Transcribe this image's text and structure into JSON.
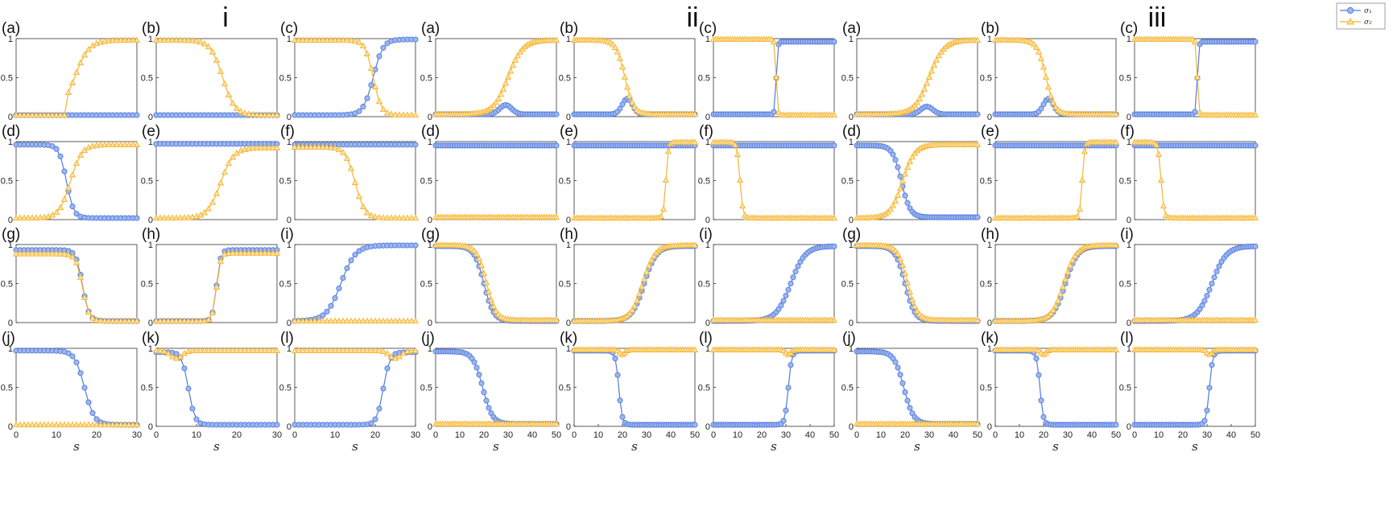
{
  "figure": {
    "group_labels": [
      "i",
      "ii",
      "iii"
    ],
    "legend": {
      "entries": [
        "σ₁",
        "σ₂"
      ],
      "placement": "top-right",
      "colors": [
        "#4f7be0",
        "#f5b431"
      ]
    },
    "colors": {
      "sigma1_line": "#4f7be0",
      "sigma1_fill": "#9fb6ee",
      "sigma2_line": "#f5b431",
      "sigma2_fill": "#fde3a3"
    }
  },
  "chart_data": [
    {
      "group": "i",
      "label": "(a)",
      "xlabel": "",
      "xticks": [],
      "xlim": [
        0,
        30
      ],
      "ylim": [
        0,
        1
      ],
      "yticks": [
        "0",
        "0.5",
        "1"
      ],
      "series": [
        {
          "type": "const",
          "v": 0.02
        },
        {
          "type": "sig",
          "y0": 0.02,
          "y1": 0.98,
          "c": 14.5,
          "w": 1.8,
          "xmin": 12.5
        }
      ]
    },
    {
      "group": "i",
      "label": "(b)",
      "xlabel": "",
      "xticks": [],
      "xlim": [
        0,
        30
      ],
      "ylim": [
        0,
        1
      ],
      "yticks": [
        "0",
        "0.5",
        "1"
      ],
      "series": [
        {
          "type": "const",
          "v": 0.02
        },
        {
          "type": "sig",
          "y0": 0.98,
          "y1": 0.02,
          "c": 16.5,
          "w": 1.5
        }
      ]
    },
    {
      "group": "i",
      "label": "(c)",
      "xlabel": "",
      "xticks": [],
      "xlim": [
        0,
        30
      ],
      "ylim": [
        0,
        1
      ],
      "yticks": [
        "0",
        "0.5",
        "1"
      ],
      "series": [
        {
          "type": "sig",
          "y0": 0.02,
          "y1": 0.99,
          "c": 19.5,
          "w": 1.2
        },
        {
          "type": "sig",
          "y0": 0.98,
          "y1": 0.02,
          "c": 19.5,
          "w": 1.0
        }
      ]
    },
    {
      "group": "ii",
      "label": "(a)",
      "xlabel": "",
      "xticks": [],
      "xlim": [
        0,
        50
      ],
      "ylim": [
        0,
        1
      ],
      "yticks": [
        "0",
        "0.5",
        "1"
      ],
      "series": [
        {
          "type": "bump",
          "base": 0.03,
          "amp": 0.12,
          "c": 29,
          "w": 3.5
        },
        {
          "type": "sig",
          "y0": 0.03,
          "y1": 0.98,
          "c": 30,
          "w": 3
        }
      ]
    },
    {
      "group": "ii",
      "label": "(b)",
      "xlabel": "",
      "xticks": [],
      "xlim": [
        0,
        50
      ],
      "ylim": [
        0,
        1
      ],
      "yticks": [
        "0",
        "0.5",
        "1"
      ],
      "series": [
        {
          "type": "bump",
          "base": 0.03,
          "amp": 0.2,
          "c": 22,
          "w": 3
        },
        {
          "type": "sig",
          "y0": 0.98,
          "y1": 0.03,
          "c": 21,
          "w": 1.8
        }
      ]
    },
    {
      "group": "ii",
      "label": "(c)",
      "xlabel": "",
      "xticks": [],
      "xlim": [
        0,
        50
      ],
      "ylim": [
        0,
        1
      ],
      "yticks": [
        "0",
        "0.5",
        "1"
      ],
      "series": [
        {
          "type": "sig",
          "y0": 0.03,
          "y1": 0.96,
          "c": 26,
          "w": 0.3
        },
        {
          "type": "sig",
          "y0": 0.99,
          "y1": 0.02,
          "c": 26,
          "w": 0.3
        }
      ]
    },
    {
      "group": "iii",
      "label": "(a)",
      "xlabel": "",
      "xticks": [],
      "xlim": [
        0,
        50
      ],
      "ylim": [
        0,
        1
      ],
      "yticks": [
        "0",
        "0.5",
        "1"
      ],
      "series": [
        {
          "type": "bump",
          "base": 0.03,
          "amp": 0.1,
          "c": 29,
          "w": 3.5
        },
        {
          "type": "sig",
          "y0": 0.03,
          "y1": 0.98,
          "c": 30,
          "w": 3
        }
      ]
    },
    {
      "group": "iii",
      "label": "(b)",
      "xlabel": "",
      "xticks": [],
      "xlim": [
        0,
        50
      ],
      "ylim": [
        0,
        1
      ],
      "yticks": [
        "0",
        "0.5",
        "1"
      ],
      "series": [
        {
          "type": "bump",
          "base": 0.03,
          "amp": 0.2,
          "c": 22,
          "w": 3
        },
        {
          "type": "sig",
          "y0": 0.98,
          "y1": 0.03,
          "c": 21,
          "w": 1.8
        }
      ]
    },
    {
      "group": "iii",
      "label": "(c)",
      "xlabel": "",
      "xticks": [],
      "xlim": [
        0,
        50
      ],
      "ylim": [
        0,
        1
      ],
      "yticks": [
        "0",
        "0.5",
        "1"
      ],
      "series": [
        {
          "type": "sig",
          "y0": 0.03,
          "y1": 0.96,
          "c": 26,
          "w": 0.3
        },
        {
          "type": "sig",
          "y0": 0.99,
          "y1": 0.02,
          "c": 26,
          "w": 0.3
        }
      ]
    },
    {
      "group": "i",
      "label": "(d)",
      "xlabel": "",
      "xticks": [],
      "xlim": [
        0,
        30
      ],
      "ylim": [
        0,
        1
      ],
      "yticks": [
        "0",
        "0.5",
        "1"
      ],
      "series": [
        {
          "type": "sig",
          "y0": 0.96,
          "y1": 0.02,
          "c": 12.5,
          "w": 0.9
        },
        {
          "type": "sig",
          "y0": 0.02,
          "y1": 0.96,
          "c": 13.5,
          "w": 1.4
        }
      ]
    },
    {
      "group": "i",
      "label": "(e)",
      "xlabel": "",
      "xticks": [],
      "xlim": [
        0,
        30
      ],
      "ylim": [
        0,
        1
      ],
      "yticks": [
        "0",
        "0.5",
        "1"
      ],
      "series": [
        {
          "type": "const",
          "v": 0.97
        },
        {
          "type": "sig",
          "y0": 0.02,
          "y1": 0.92,
          "c": 16,
          "w": 1.6
        }
      ]
    },
    {
      "group": "i",
      "label": "(f)",
      "xlabel": "",
      "xticks": [],
      "xlim": [
        0,
        30
      ],
      "ylim": [
        0,
        1
      ],
      "yticks": [
        "0",
        "0.5",
        "1"
      ],
      "series": [
        {
          "type": "const",
          "v": 0.96
        },
        {
          "type": "sig",
          "y0": 0.93,
          "y1": 0.02,
          "c": 15,
          "w": 1.2
        }
      ]
    },
    {
      "group": "ii",
      "label": "(d)",
      "xlabel": "",
      "xticks": [],
      "xlim": [
        0,
        50
      ],
      "ylim": [
        0,
        1
      ],
      "yticks": [
        "0",
        "0.5",
        "1"
      ],
      "series": [
        {
          "type": "const",
          "v": 0.95
        },
        {
          "type": "const",
          "v": 0.03
        }
      ]
    },
    {
      "group": "ii",
      "label": "(e)",
      "xlabel": "",
      "xticks": [],
      "xlim": [
        0,
        50
      ],
      "ylim": [
        0,
        1
      ],
      "yticks": [
        "0",
        "0.5",
        "1"
      ],
      "series": [
        {
          "type": "const",
          "v": 0.95
        },
        {
          "type": "sig",
          "y0": 0.02,
          "y1": 0.99,
          "c": 38,
          "w": 0.5
        }
      ]
    },
    {
      "group": "ii",
      "label": "(f)",
      "xlabel": "",
      "xticks": [],
      "xlim": [
        0,
        50
      ],
      "ylim": [
        0,
        1
      ],
      "yticks": [
        "0",
        "0.5",
        "1"
      ],
      "series": [
        {
          "type": "const",
          "v": 0.95
        },
        {
          "type": "sig",
          "y0": 0.99,
          "y1": 0.02,
          "c": 11,
          "w": 0.6
        }
      ]
    },
    {
      "group": "iii",
      "label": "(d)",
      "xlabel": "",
      "xticks": [],
      "xlim": [
        0,
        50
      ],
      "ylim": [
        0,
        1
      ],
      "yticks": [
        "0",
        "0.5",
        "1"
      ],
      "series": [
        {
          "type": "sig",
          "y0": 0.95,
          "y1": 0.03,
          "c": 18.5,
          "w": 1.8
        },
        {
          "type": "sig",
          "y0": 0.02,
          "y1": 0.96,
          "c": 19,
          "w": 2.5
        }
      ]
    },
    {
      "group": "iii",
      "label": "(e)",
      "xlabel": "",
      "xticks": [],
      "xlim": [
        0,
        50
      ],
      "ylim": [
        0,
        1
      ],
      "yticks": [
        "0",
        "0.5",
        "1"
      ],
      "series": [
        {
          "type": "const",
          "v": 0.95
        },
        {
          "type": "sig",
          "y0": 0.02,
          "y1": 0.99,
          "c": 36,
          "w": 0.5
        }
      ]
    },
    {
      "group": "iii",
      "label": "(f)",
      "xlabel": "",
      "xticks": [],
      "xlim": [
        0,
        50
      ],
      "ylim": [
        0,
        1
      ],
      "yticks": [
        "0",
        "0.5",
        "1"
      ],
      "series": [
        {
          "type": "const",
          "v": 0.95
        },
        {
          "type": "sig",
          "y0": 0.99,
          "y1": 0.02,
          "c": 11,
          "w": 0.6
        }
      ]
    },
    {
      "group": "i",
      "label": "(g)",
      "xlabel": "",
      "xticks": [],
      "xlim": [
        0,
        30
      ],
      "ylim": [
        0,
        1
      ],
      "yticks": [
        "0",
        "0.5",
        "1"
      ],
      "series": [
        {
          "type": "sig",
          "y0": 0.93,
          "y1": 0.02,
          "c": 16.5,
          "w": 0.8
        },
        {
          "type": "sig",
          "y0": 0.88,
          "y1": 0.02,
          "c": 16.5,
          "w": 0.8
        }
      ]
    },
    {
      "group": "i",
      "label": "(h)",
      "xlabel": "",
      "xticks": [],
      "xlim": [
        0,
        30
      ],
      "ylim": [
        0,
        1
      ],
      "yticks": [
        "0",
        "0.5",
        "1"
      ],
      "series": [
        {
          "type": "sig",
          "y0": 0.02,
          "y1": 0.93,
          "c": 15,
          "w": 0.5
        },
        {
          "type": "sig",
          "y0": 0.02,
          "y1": 0.89,
          "c": 15,
          "w": 0.5
        }
      ]
    },
    {
      "group": "i",
      "label": "(i)",
      "xlabel": "",
      "xticks": [],
      "xlim": [
        0,
        30
      ],
      "ylim": [
        0,
        1
      ],
      "yticks": [
        "0",
        "0.5",
        "1"
      ],
      "series": [
        {
          "type": "sig",
          "y0": 0.02,
          "y1": 0.99,
          "c": 11.5,
          "w": 1.8
        },
        {
          "type": "const",
          "v": 0.02
        }
      ]
    },
    {
      "group": "ii",
      "label": "(g)",
      "xlabel": "",
      "xticks": [],
      "xlim": [
        0,
        50
      ],
      "ylim": [
        0,
        1
      ],
      "yticks": [
        "0",
        "0.5",
        "1"
      ],
      "series": [
        {
          "type": "sig",
          "y0": 0.98,
          "y1": 0.02,
          "c": 20,
          "w": 2
        },
        {
          "type": "sig",
          "y0": 0.99,
          "y1": 0.03,
          "c": 21,
          "w": 2
        }
      ]
    },
    {
      "group": "ii",
      "label": "(h)",
      "xlabel": "",
      "xticks": [],
      "xlim": [
        0,
        50
      ],
      "ylim": [
        0,
        1
      ],
      "yticks": [
        "0",
        "0.5",
        "1"
      ],
      "series": [
        {
          "type": "sig",
          "y0": 0.02,
          "y1": 0.98,
          "c": 29,
          "w": 2.5
        },
        {
          "type": "sig",
          "y0": 0.02,
          "y1": 0.99,
          "c": 28.5,
          "w": 2.5
        }
      ]
    },
    {
      "group": "ii",
      "label": "(i)",
      "xlabel": "",
      "xticks": [],
      "xlim": [
        0,
        50
      ],
      "ylim": [
        0,
        1
      ],
      "yticks": [
        "0",
        "0.5",
        "1"
      ],
      "series": [
        {
          "type": "sig",
          "y0": 0.02,
          "y1": 0.98,
          "c": 32,
          "w": 3
        },
        {
          "type": "const",
          "v": 0.03
        }
      ]
    },
    {
      "group": "iii",
      "label": "(g)",
      "xlabel": "",
      "xticks": [],
      "xlim": [
        0,
        50
      ],
      "ylim": [
        0,
        1
      ],
      "yticks": [
        "0",
        "0.5",
        "1"
      ],
      "series": [
        {
          "type": "sig",
          "y0": 0.98,
          "y1": 0.02,
          "c": 20,
          "w": 2
        },
        {
          "type": "sig",
          "y0": 0.99,
          "y1": 0.03,
          "c": 21,
          "w": 2
        }
      ]
    },
    {
      "group": "iii",
      "label": "(h)",
      "xlabel": "",
      "xticks": [],
      "xlim": [
        0,
        50
      ],
      "ylim": [
        0,
        1
      ],
      "yticks": [
        "0",
        "0.5",
        "1"
      ],
      "series": [
        {
          "type": "sig",
          "y0": 0.02,
          "y1": 0.98,
          "c": 29,
          "w": 2.5
        },
        {
          "type": "sig",
          "y0": 0.02,
          "y1": 0.99,
          "c": 28.5,
          "w": 2.5
        }
      ]
    },
    {
      "group": "iii",
      "label": "(i)",
      "xlabel": "",
      "xticks": [],
      "xlim": [
        0,
        50
      ],
      "ylim": [
        0,
        1
      ],
      "yticks": [
        "0",
        "0.5",
        "1"
      ],
      "series": [
        {
          "type": "sig",
          "y0": 0.02,
          "y1": 0.98,
          "c": 32,
          "w": 3
        },
        {
          "type": "const",
          "v": 0.03
        }
      ]
    },
    {
      "group": "i",
      "label": "(j)",
      "xlabel": "s",
      "xticks": [
        "0",
        "10",
        "20",
        "30"
      ],
      "xlim": [
        0,
        30
      ],
      "ylim": [
        0,
        1
      ],
      "yticks": [
        "0",
        "0.5",
        "1"
      ],
      "series": [
        {
          "type": "sig",
          "y0": 0.97,
          "y1": 0.02,
          "c": 17,
          "w": 1.2
        },
        {
          "type": "const",
          "v": 0.02
        }
      ]
    },
    {
      "group": "i",
      "label": "(k)",
      "xlabel": "s",
      "xticks": [
        "0",
        "10",
        "20",
        "30"
      ],
      "xlim": [
        0,
        30
      ],
      "ylim": [
        0,
        1
      ],
      "yticks": [
        "0",
        "0.5",
        "1"
      ],
      "series": [
        {
          "type": "sig",
          "y0": 0.95,
          "y1": 0.02,
          "c": 8,
          "w": 0.8
        },
        {
          "type": "dip",
          "base": 0.97,
          "amp": 0.1,
          "c": 5,
          "w": 2
        }
      ]
    },
    {
      "group": "i",
      "label": "(l)",
      "xlabel": "s",
      "xticks": [
        "0",
        "10",
        "20",
        "30"
      ],
      "xlim": [
        0,
        30
      ],
      "ylim": [
        0,
        1
      ],
      "yticks": [
        "0",
        "0.5",
        "1"
      ],
      "series": [
        {
          "type": "sig",
          "y0": 0.02,
          "y1": 0.95,
          "c": 22,
          "w": 0.8
        },
        {
          "type": "dip",
          "base": 0.97,
          "amp": 0.1,
          "c": 25,
          "w": 2
        }
      ]
    },
    {
      "group": "ii",
      "label": "(j)",
      "xlabel": "s",
      "xticks": [
        "0",
        "10",
        "20",
        "30",
        "40",
        "50"
      ],
      "xlim": [
        0,
        50
      ],
      "ylim": [
        0,
        1
      ],
      "yticks": [
        "0",
        "0.5",
        "1"
      ],
      "series": [
        {
          "type": "sig",
          "y0": 0.96,
          "y1": 0.03,
          "c": 19.5,
          "w": 2
        },
        {
          "type": "const",
          "v": 0.03
        }
      ]
    },
    {
      "group": "ii",
      "label": "(k)",
      "xlabel": "s",
      "xticks": [
        "0",
        "10",
        "20",
        "30",
        "40",
        "50"
      ],
      "xlim": [
        0,
        50
      ],
      "ylim": [
        0,
        1
      ],
      "yticks": [
        "0",
        "0.5",
        "1"
      ],
      "series": [
        {
          "type": "sig",
          "y0": 0.97,
          "y1": 0.02,
          "c": 18.5,
          "w": 0.7
        },
        {
          "type": "dip",
          "base": 0.98,
          "amp": 0.06,
          "c": 20,
          "w": 1.5
        }
      ]
    },
    {
      "group": "ii",
      "label": "(l)",
      "xlabel": "s",
      "xticks": [
        "0",
        "10",
        "20",
        "30",
        "40",
        "50"
      ],
      "xlim": [
        0,
        50
      ],
      "ylim": [
        0,
        1
      ],
      "yticks": [
        "0",
        "0.5",
        "1"
      ],
      "series": [
        {
          "type": "sig",
          "y0": 0.02,
          "y1": 0.97,
          "c": 31,
          "w": 0.7
        },
        {
          "type": "dip",
          "base": 0.98,
          "amp": 0.06,
          "c": 31,
          "w": 1.5
        }
      ]
    },
    {
      "group": "iii",
      "label": "(j)",
      "xlabel": "s",
      "xticks": [
        "0",
        "10",
        "20",
        "30",
        "40",
        "50"
      ],
      "xlim": [
        0,
        50
      ],
      "ylim": [
        0,
        1
      ],
      "yticks": [
        "0",
        "0.5",
        "1"
      ],
      "series": [
        {
          "type": "sig",
          "y0": 0.96,
          "y1": 0.03,
          "c": 19.5,
          "w": 2
        },
        {
          "type": "const",
          "v": 0.03
        }
      ]
    },
    {
      "group": "iii",
      "label": "(k)",
      "xlabel": "s",
      "xticks": [
        "0",
        "10",
        "20",
        "30",
        "40",
        "50"
      ],
      "xlim": [
        0,
        50
      ],
      "ylim": [
        0,
        1
      ],
      "yticks": [
        "0",
        "0.5",
        "1"
      ],
      "series": [
        {
          "type": "sig",
          "y0": 0.97,
          "y1": 0.02,
          "c": 18.5,
          "w": 0.7
        },
        {
          "type": "dip",
          "base": 0.98,
          "amp": 0.06,
          "c": 20,
          "w": 1.5
        }
      ]
    },
    {
      "group": "iii",
      "label": "(l)",
      "xlabel": "s",
      "xticks": [
        "0",
        "10",
        "20",
        "30",
        "40",
        "50"
      ],
      "xlim": [
        0,
        50
      ],
      "ylim": [
        0,
        1
      ],
      "yticks": [
        "0",
        "0.5",
        "1"
      ],
      "series": [
        {
          "type": "sig",
          "y0": 0.02,
          "y1": 0.97,
          "c": 31,
          "w": 0.7
        },
        {
          "type": "dip",
          "base": 0.98,
          "amp": 0.06,
          "c": 31,
          "w": 1.5
        }
      ]
    }
  ]
}
